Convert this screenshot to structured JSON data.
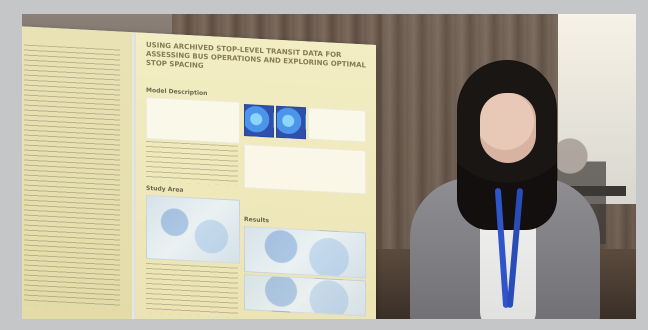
{
  "photo": {
    "poster": {
      "title": "USING ARCHIVED STOP-LEVEL TRANSIT DATA FOR ASSESSING BUS OPERATIONS AND EXPLORING OPTIMAL STOP SPACING",
      "sections": [
        "Model Description",
        "Study Area",
        "Results"
      ]
    }
  }
}
